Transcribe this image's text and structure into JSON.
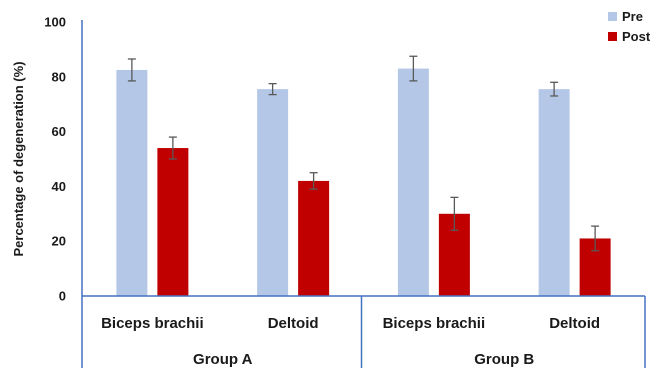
{
  "chart_data": {
    "type": "bar",
    "ylabel": "Percentage of degeneration (%)",
    "ylim": [
      0,
      100
    ],
    "yticks": [
      "0",
      "20",
      "40",
      "60",
      "80",
      "100"
    ],
    "groups": [
      {
        "label": "Group A",
        "categories": [
          "Biceps brachii",
          "Deltoid"
        ]
      },
      {
        "label": "Group B",
        "categories": [
          "Biceps brachii",
          "Deltoid"
        ]
      }
    ],
    "categories": [
      "Biceps brachii",
      "Deltoid",
      "Biceps brachii",
      "Deltoid"
    ],
    "series": [
      {
        "name": "Pre",
        "color": "#b4c7e7",
        "values": [
          82.5,
          75.5,
          83.0,
          75.5
        ],
        "errors": [
          4.0,
          2.0,
          4.5,
          2.5
        ]
      },
      {
        "name": "Post",
        "color": "#c00000",
        "values": [
          54.0,
          42.0,
          30.0,
          21.0
        ],
        "errors": [
          4.0,
          3.0,
          6.0,
          4.5
        ]
      }
    ],
    "legend_position": "top-right",
    "grid": false
  }
}
